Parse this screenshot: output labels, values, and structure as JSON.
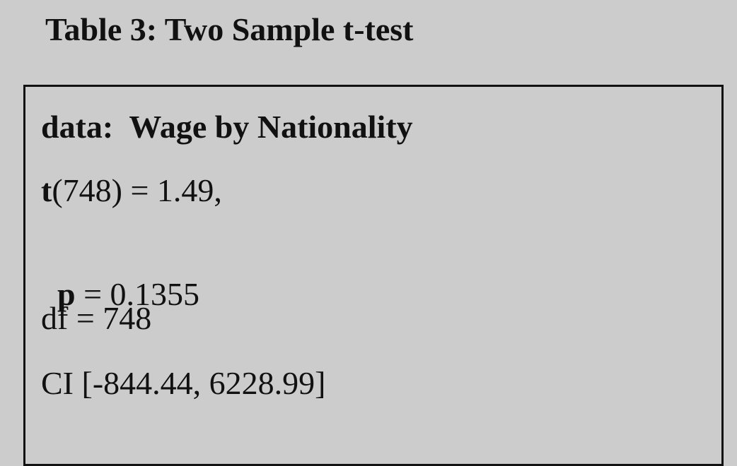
{
  "table": {
    "title": "Table 3: Two Sample t-test"
  },
  "results": {
    "data_line": "data:  Wage by Nationality",
    "t_symbol": "t",
    "t_rest": "(748) = 1.49,",
    "p_symbol": "p",
    "p_rest": " = 0.1355",
    "df_line": "df = 748",
    "ci_line": "CI [-844.44, 6228.99]"
  }
}
